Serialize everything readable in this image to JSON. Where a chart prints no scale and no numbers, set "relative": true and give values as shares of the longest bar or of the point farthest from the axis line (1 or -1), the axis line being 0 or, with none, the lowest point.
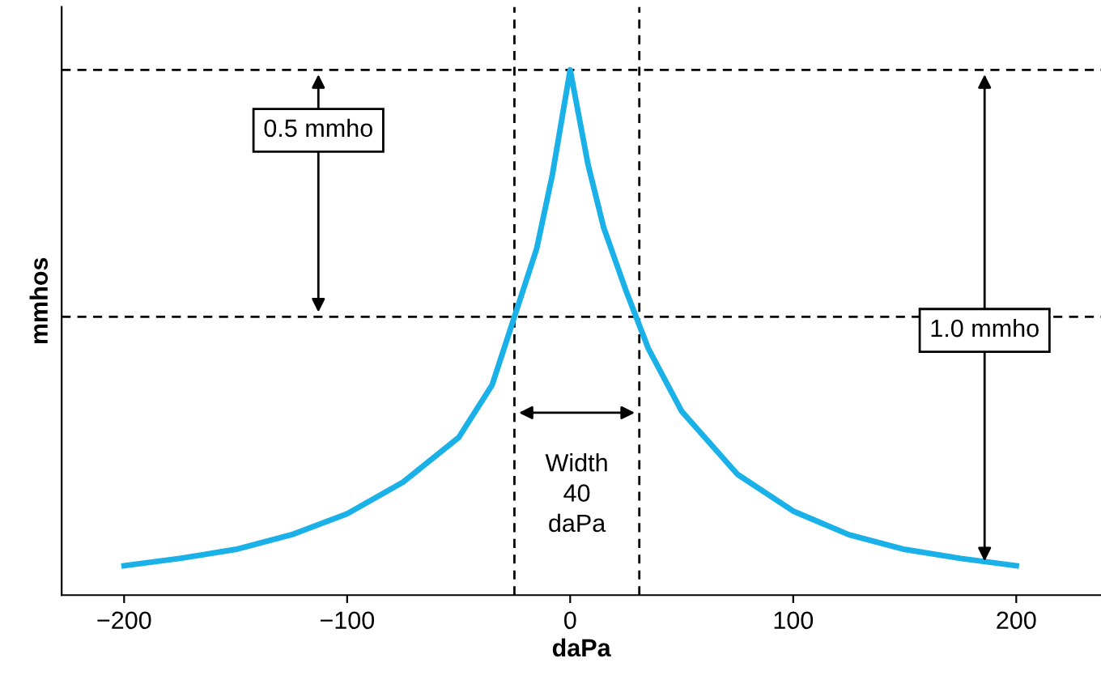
{
  "chart_data": {
    "type": "line",
    "relative": true,
    "xlabel": "daPa",
    "ylabel": "mmhos",
    "color": "#1ab0e8",
    "xlim": [
      -228,
      238
    ],
    "xticks": [
      {
        "value": -200,
        "label": "−200"
      },
      {
        "value": -100,
        "label": "−100"
      },
      0,
      100,
      200
    ],
    "x": [
      -200,
      -175,
      -150,
      -125,
      -100,
      -75,
      -50,
      -35,
      -25,
      -15,
      -8,
      0,
      8,
      15,
      25,
      35,
      50,
      75,
      100,
      125,
      150,
      175,
      200
    ],
    "values": [
      0.056,
      0.07,
      0.087,
      0.115,
      0.155,
      0.215,
      0.3,
      0.4,
      0.53,
      0.66,
      0.8,
      1.0,
      0.82,
      0.7,
      0.58,
      0.47,
      0.35,
      0.23,
      0.16,
      0.115,
      0.087,
      0.07,
      0.056
    ],
    "ref_lines": [
      {
        "axis": "y",
        "value": 1.0,
        "line_style": "dashed",
        "color": "#000000"
      },
      {
        "axis": "y",
        "value": 0.53,
        "line_style": "dashed",
        "color": "#000000"
      },
      {
        "axis": "x",
        "value": -25,
        "line_style": "dashed",
        "color": "#000000"
      },
      {
        "axis": "x",
        "value": 31,
        "line_style": "dashed",
        "color": "#000000"
      }
    ],
    "annotations": [
      "0.5 mmho",
      "1.0 mmho",
      "Width\n40\ndaPa"
    ],
    "grid": false,
    "legend": false
  }
}
